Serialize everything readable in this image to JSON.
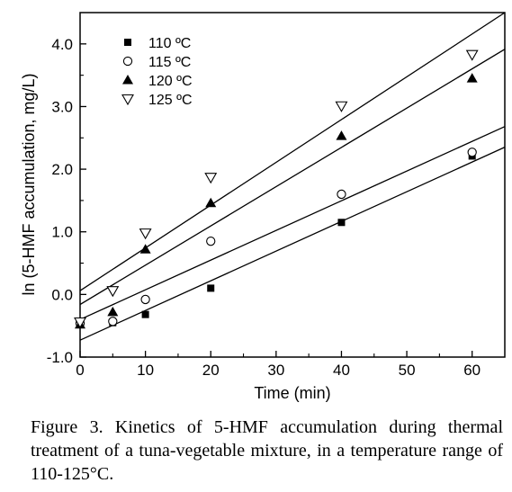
{
  "chart_data": {
    "type": "scatter",
    "title": "",
    "xlabel": "Time (min)",
    "ylabel": "ln (5-HMF accumulation, mg/L)",
    "xlim": [
      0,
      65
    ],
    "ylim": [
      -1.0,
      4.5
    ],
    "x_ticks": [
      0,
      10,
      20,
      30,
      40,
      50,
      60
    ],
    "x_tick_labels": [
      "0",
      "10",
      "20",
      "30",
      "40",
      "50",
      "60"
    ],
    "y_ticks": [
      -1.0,
      0.0,
      1.0,
      2.0,
      3.0,
      4.0
    ],
    "y_tick_labels": [
      "-1.0",
      "0.0",
      "1.0",
      "2.0",
      "3.0",
      "4.0"
    ],
    "grid": false,
    "legend_position": "top-left",
    "series": [
      {
        "name": "110 ºC",
        "marker": "filled-square",
        "x": [
          0,
          5,
          10,
          20,
          40,
          60
        ],
        "y": [
          -0.47,
          -0.45,
          -0.32,
          0.1,
          1.15,
          2.21
        ],
        "fit": {
          "slope": 0.0474,
          "intercept": -0.73
        }
      },
      {
        "name": "115 ºC",
        "marker": "open-circle",
        "x": [
          0,
          5,
          10,
          20,
          40,
          60
        ],
        "y": [
          -0.46,
          -0.43,
          -0.08,
          0.85,
          1.6,
          2.27
        ],
        "fit": {
          "slope": 0.0474,
          "intercept": -0.4
        }
      },
      {
        "name": "120 ºC",
        "marker": "filled-triangle-up",
        "x": [
          0,
          5,
          10,
          20,
          40,
          60
        ],
        "y": [
          -0.48,
          -0.28,
          0.72,
          1.46,
          2.53,
          3.45
        ],
        "fit": {
          "slope": 0.0627,
          "intercept": -0.16
        }
      },
      {
        "name": "125 ºC",
        "marker": "open-triangle-down",
        "x": [
          0,
          5,
          10,
          20,
          40,
          60
        ],
        "y": [
          -0.44,
          0.06,
          0.98,
          1.87,
          3.01,
          3.83
        ],
        "fit": {
          "slope": 0.0683,
          "intercept": 0.06
        }
      }
    ]
  },
  "caption": "Figure 3. Kinetics of 5-HMF accumulation during thermal treatment of a tuna-vegetable mixture, in a temperature range of 110-125°C."
}
